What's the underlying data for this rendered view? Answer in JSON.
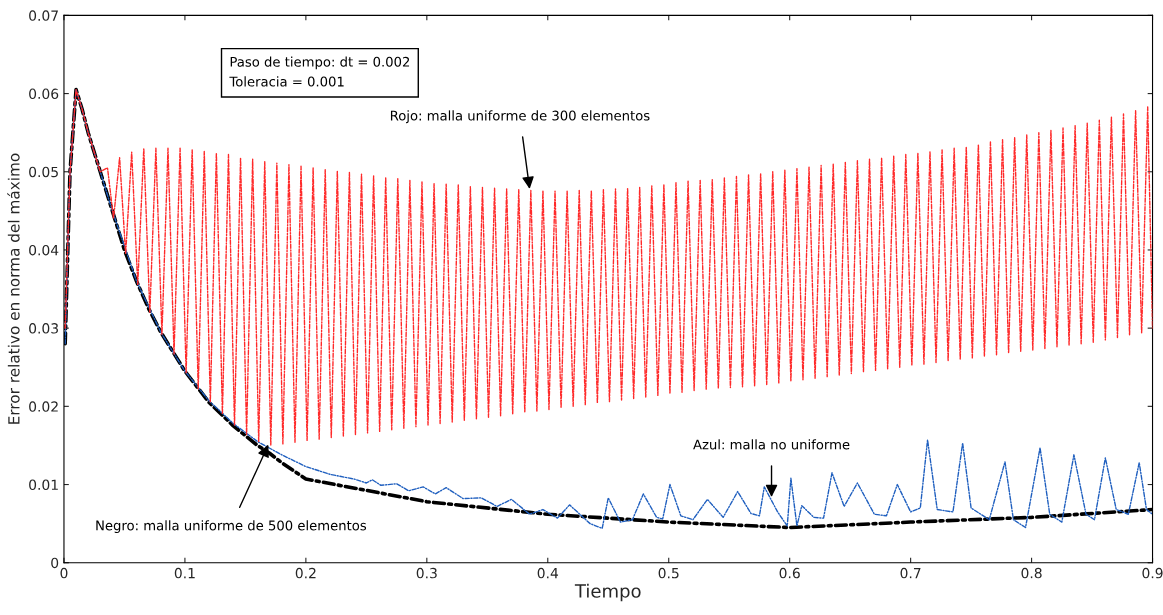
{
  "chart_data": {
    "type": "line",
    "xlabel": "Tiempo",
    "ylabel": "Error relativo en norma del máximo",
    "xlim": [
      0,
      0.9
    ],
    "xticks": [
      0,
      0.1,
      0.2,
      0.3,
      0.4,
      0.5,
      0.6,
      0.7,
      0.8,
      0.9
    ],
    "ylim": [
      0,
      0.07
    ],
    "yticks": [
      0,
      0.01,
      0.02,
      0.03,
      0.04,
      0.05,
      0.06,
      0.07
    ],
    "grid": false,
    "line_style": "dashdot",
    "series": [
      {
        "color": "#ff2a2a",
        "x": [
          0.001,
          0.005,
          0.01,
          0.015,
          0.02,
          0.03,
          0.036,
          0.041,
          0.046,
          0.051,
          0.056,
          0.061,
          0.066,
          0.071,
          0.076,
          0.081,
          0.086,
          0.091,
          0.096,
          0.101,
          0.106,
          0.111,
          0.116,
          0.121,
          0.126,
          0.131,
          0.136,
          0.141,
          0.146,
          0.151,
          0.156,
          0.161,
          0.166,
          0.171,
          0.176,
          0.181,
          0.186,
          0.191,
          0.196,
          0.201,
          0.206,
          0.211,
          0.216,
          0.221,
          0.226,
          0.231,
          0.236,
          0.241,
          0.246,
          0.251,
          0.256,
          0.261,
          0.266,
          0.271,
          0.276,
          0.281,
          0.286,
          0.291,
          0.296,
          0.301,
          0.306,
          0.311,
          0.316,
          0.321,
          0.326,
          0.331,
          0.336,
          0.341,
          0.346,
          0.351,
          0.356,
          0.361,
          0.366,
          0.371,
          0.376,
          0.381,
          0.386,
          0.391,
          0.396,
          0.401,
          0.406,
          0.411,
          0.416,
          0.421,
          0.426,
          0.431,
          0.436,
          0.441,
          0.446,
          0.451,
          0.456,
          0.461,
          0.466,
          0.471,
          0.476,
          0.481,
          0.486,
          0.491,
          0.496,
          0.501,
          0.506,
          0.511,
          0.516,
          0.521,
          0.526,
          0.531,
          0.536,
          0.541,
          0.546,
          0.551,
          0.556,
          0.561,
          0.566,
          0.571,
          0.576,
          0.581,
          0.586,
          0.591,
          0.596,
          0.601,
          0.606,
          0.611,
          0.616,
          0.621,
          0.626,
          0.631,
          0.636,
          0.641,
          0.646,
          0.651,
          0.656,
          0.661,
          0.666,
          0.671,
          0.676,
          0.681,
          0.686,
          0.691,
          0.696,
          0.701,
          0.706,
          0.711,
          0.716,
          0.721,
          0.726,
          0.731,
          0.736,
          0.741,
          0.746,
          0.751,
          0.756,
          0.761,
          0.766,
          0.771,
          0.776,
          0.781,
          0.786,
          0.791,
          0.796,
          0.801,
          0.806,
          0.811,
          0.816,
          0.821,
          0.826,
          0.831,
          0.836,
          0.841,
          0.846,
          0.851,
          0.856,
          0.861,
          0.866,
          0.871,
          0.876,
          0.881,
          0.886,
          0.891,
          0.896,
          0.9
        ],
        "values": [
          0.03,
          0.05,
          0.0605,
          0.058,
          0.055,
          0.05,
          0.0505,
          0.044,
          0.0518,
          0.0395,
          0.0525,
          0.0356,
          0.053,
          0.032,
          0.053,
          0.0292,
          0.053,
          0.0267,
          0.053,
          0.0243,
          0.0528,
          0.0222,
          0.0526,
          0.0205,
          0.0524,
          0.019,
          0.0522,
          0.0176,
          0.0518,
          0.0164,
          0.0516,
          0.0155,
          0.0513,
          0.015,
          0.0511,
          0.0152,
          0.0509,
          0.0154,
          0.0507,
          0.0156,
          0.0505,
          0.0158,
          0.0503,
          0.016,
          0.0501,
          0.0162,
          0.0499,
          0.0164,
          0.0497,
          0.0166,
          0.0495,
          0.0168,
          0.0493,
          0.017,
          0.0491,
          0.0172,
          0.0489,
          0.0174,
          0.0487,
          0.0176,
          0.0485,
          0.0178,
          0.0484,
          0.018,
          0.0483,
          0.0182,
          0.0481,
          0.0184,
          0.048,
          0.0186,
          0.0479,
          0.0188,
          0.0478,
          0.019,
          0.0477,
          0.0192,
          0.0476,
          0.0194,
          0.0476,
          0.0196,
          0.0475,
          0.0198,
          0.0475,
          0.02,
          0.0476,
          0.0202,
          0.0476,
          0.0204,
          0.0477,
          0.0206,
          0.0478,
          0.0208,
          0.0479,
          0.021,
          0.048,
          0.0212,
          0.0482,
          0.0214,
          0.0484,
          0.0216,
          0.0486,
          0.0218,
          0.0488,
          0.022,
          0.0489,
          0.0222,
          0.049,
          0.0223,
          0.0492,
          0.0224,
          0.0494,
          0.0225,
          0.0496,
          0.0226,
          0.0498,
          0.0228,
          0.05,
          0.023,
          0.0502,
          0.0232,
          0.0504,
          0.0234,
          0.0506,
          0.0236,
          0.0508,
          0.0238,
          0.051,
          0.024,
          0.0512,
          0.0242,
          0.0514,
          0.0244,
          0.0516,
          0.0246,
          0.0518,
          0.0248,
          0.052,
          0.025,
          0.0522,
          0.0252,
          0.0524,
          0.0254,
          0.0526,
          0.0256,
          0.0528,
          0.0258,
          0.053,
          0.026,
          0.0532,
          0.0262,
          0.0535,
          0.0264,
          0.0538,
          0.0266,
          0.0541,
          0.0268,
          0.0544,
          0.027,
          0.0547,
          0.0272,
          0.055,
          0.0274,
          0.0553,
          0.0276,
          0.0556,
          0.0278,
          0.0559,
          0.028,
          0.0562,
          0.0282,
          0.0566,
          0.0285,
          0.057,
          0.0288,
          0.0574,
          0.0291,
          0.0578,
          0.0294,
          0.0583,
          0.03
        ]
      },
      {
        "color": "#1f5fbf",
        "x": [
          0.001,
          0.005,
          0.01,
          0.015,
          0.02,
          0.04,
          0.06,
          0.08,
          0.1,
          0.12,
          0.14,
          0.16,
          0.18,
          0.2,
          0.22,
          0.24,
          0.25,
          0.255,
          0.262,
          0.275,
          0.285,
          0.297,
          0.307,
          0.316,
          0.33,
          0.345,
          0.358,
          0.37,
          0.385,
          0.396,
          0.408,
          0.418,
          0.435,
          0.445,
          0.45,
          0.46,
          0.47,
          0.479,
          0.49,
          0.495,
          0.501,
          0.51,
          0.52,
          0.532,
          0.545,
          0.557,
          0.568,
          0.575,
          0.579,
          0.59,
          0.598,
          0.601,
          0.606,
          0.61,
          0.62,
          0.628,
          0.635,
          0.645,
          0.656,
          0.67,
          0.68,
          0.689,
          0.7,
          0.708,
          0.714,
          0.722,
          0.735,
          0.743,
          0.75,
          0.765,
          0.778,
          0.785,
          0.795,
          0.807,
          0.815,
          0.825,
          0.835,
          0.845,
          0.852,
          0.861,
          0.87,
          0.88,
          0.889,
          0.895,
          0.9
        ],
        "values": [
          0.028,
          0.05,
          0.0605,
          0.058,
          0.055,
          0.045,
          0.036,
          0.0295,
          0.0245,
          0.0207,
          0.0178,
          0.0155,
          0.0138,
          0.0123,
          0.0113,
          0.0107,
          0.0102,
          0.0106,
          0.0099,
          0.0101,
          0.0092,
          0.0097,
          0.0088,
          0.0096,
          0.0082,
          0.0083,
          0.0072,
          0.0081,
          0.0062,
          0.0068,
          0.0057,
          0.0074,
          0.005,
          0.0044,
          0.0083,
          0.0052,
          0.0055,
          0.0088,
          0.0058,
          0.0056,
          0.01,
          0.006,
          0.0055,
          0.0081,
          0.0058,
          0.0091,
          0.0063,
          0.006,
          0.0097,
          0.0065,
          0.0047,
          0.0108,
          0.0047,
          0.0073,
          0.0058,
          0.0057,
          0.0115,
          0.0072,
          0.0102,
          0.0062,
          0.006,
          0.01,
          0.0065,
          0.007,
          0.0157,
          0.0068,
          0.0065,
          0.0153,
          0.007,
          0.0055,
          0.0129,
          0.0055,
          0.0045,
          0.0147,
          0.0062,
          0.0052,
          0.0138,
          0.0062,
          0.0055,
          0.0134,
          0.0068,
          0.0062,
          0.0128,
          0.0068,
          0.0062
        ]
      },
      {
        "color": "#000000",
        "x": [
          0.001,
          0.005,
          0.01,
          0.015,
          0.02,
          0.03,
          0.04,
          0.05,
          0.06,
          0.07,
          0.08,
          0.09,
          0.1,
          0.12,
          0.14,
          0.16,
          0.17,
          0.18,
          0.2,
          0.3,
          0.4,
          0.5,
          0.6,
          0.7,
          0.8,
          0.9
        ],
        "values": [
          0.028,
          0.05,
          0.0605,
          0.058,
          0.055,
          0.05,
          0.045,
          0.04,
          0.036,
          0.0325,
          0.0295,
          0.027,
          0.0245,
          0.0205,
          0.0175,
          0.015,
          0.014,
          0.0128,
          0.0107,
          0.0078,
          0.0062,
          0.0052,
          0.0045,
          0.0052,
          0.0058,
          0.0068
        ]
      }
    ],
    "annotations": [
      "Paso de tiempo: dt = 0.002",
      "Toleracia = 0.001",
      {
        "text": "Rojo: malla uniforme de 300 elementos",
        "x": 0.385,
        "y": 0.0478
      },
      {
        "text": "Negro: malla uniforme de 500 elementos",
        "x": 0.169,
        "y": 0.0151
      },
      {
        "text": "Azul: malla no uniforme",
        "x": 0.585,
        "y": 0.0084
      }
    ]
  }
}
